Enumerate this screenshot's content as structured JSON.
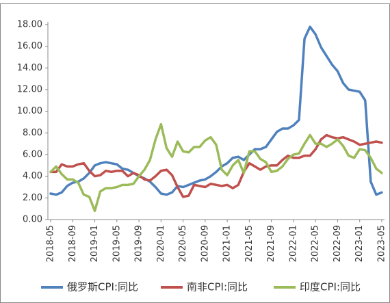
{
  "chart_data": {
    "type": "line",
    "categories": [
      "2018-05",
      null,
      null,
      null,
      "2018-09",
      null,
      null,
      null,
      "2019-01",
      null,
      null,
      null,
      "2019-05",
      null,
      null,
      null,
      "2019-09",
      null,
      null,
      null,
      "2020-01",
      null,
      null,
      null,
      "2020-05",
      null,
      null,
      null,
      "2020-09",
      null,
      null,
      null,
      "2021-01",
      null,
      null,
      null,
      "2021-05",
      null,
      null,
      null,
      "2021-09",
      null,
      null,
      null,
      "2022-01",
      null,
      null,
      null,
      "2022-05",
      null,
      null,
      null,
      "2022-09",
      null,
      null,
      null,
      "2023-01",
      null,
      null,
      null,
      "2023-05"
    ],
    "series": [
      {
        "name": "俄罗斯CPI:同比",
        "color": "#4f81bd",
        "values": [
          2.4,
          2.3,
          2.5,
          3.1,
          3.4,
          3.5,
          3.8,
          4.3,
          5.0,
          5.2,
          5.3,
          5.2,
          5.1,
          4.7,
          4.6,
          4.3,
          4.0,
          3.8,
          3.5,
          3.0,
          2.4,
          2.3,
          2.5,
          3.1,
          3.0,
          3.2,
          3.4,
          3.6,
          3.7,
          4.0,
          4.4,
          4.9,
          5.2,
          5.7,
          5.8,
          5.5,
          6.0,
          6.5,
          6.5,
          6.7,
          7.4,
          8.1,
          8.4,
          8.4,
          8.7,
          9.2,
          16.7,
          17.8,
          17.1,
          15.9,
          15.1,
          14.3,
          13.7,
          12.6,
          12.0,
          11.9,
          11.8,
          11.0,
          3.5,
          2.3,
          2.5
        ]
      },
      {
        "name": "南非CPI:同比",
        "color": "#c0504d",
        "values": [
          4.4,
          4.4,
          5.1,
          4.9,
          4.9,
          5.1,
          5.2,
          4.5,
          4.0,
          4.1,
          4.5,
          4.4,
          4.5,
          4.5,
          4.0,
          4.3,
          4.1,
          3.7,
          3.6,
          4.0,
          4.5,
          4.6,
          4.1,
          3.0,
          2.1,
          2.2,
          3.2,
          3.1,
          3.0,
          3.3,
          3.2,
          3.1,
          3.2,
          2.9,
          3.2,
          4.4,
          5.2,
          4.9,
          4.6,
          4.9,
          5.0,
          5.0,
          5.5,
          5.9,
          5.7,
          5.7,
          5.9,
          5.9,
          6.5,
          7.4,
          7.8,
          7.6,
          7.5,
          7.6,
          7.4,
          7.2,
          6.9,
          7.0,
          7.1,
          7.2,
          7.1
        ]
      },
      {
        "name": "印度CPI:同比",
        "color": "#9bbb59",
        "values": [
          4.4,
          4.9,
          4.2,
          3.7,
          3.7,
          3.4,
          2.3,
          2.1,
          0.8,
          2.6,
          2.9,
          2.9,
          3.0,
          3.2,
          3.2,
          3.3,
          4.0,
          4.6,
          5.5,
          7.4,
          8.8,
          6.6,
          5.8,
          7.2,
          6.3,
          6.2,
          6.7,
          6.7,
          7.3,
          7.6,
          6.9,
          4.6,
          4.1,
          5.0,
          5.5,
          4.3,
          6.3,
          6.3,
          5.6,
          5.3,
          4.4,
          4.5,
          4.9,
          5.6,
          6.0,
          6.1,
          7.0,
          7.8,
          7.0,
          7.0,
          6.7,
          7.0,
          7.4,
          6.8,
          5.9,
          5.7,
          6.5,
          6.4,
          5.7,
          4.7,
          4.3
        ]
      }
    ],
    "ylim": [
      0,
      18
    ],
    "yticks": [
      {
        "value": 0,
        "label": "0.00"
      },
      {
        "value": 2,
        "label": "2.00"
      },
      {
        "value": 4,
        "label": "4.00"
      },
      {
        "value": 6,
        "label": "6.00"
      },
      {
        "value": 8,
        "label": "8.00"
      },
      {
        "value": 10,
        "label": "10.00"
      },
      {
        "value": 12,
        "label": "12.00"
      },
      {
        "value": 14,
        "label": "14.00"
      },
      {
        "value": 16,
        "label": "16.00"
      },
      {
        "value": 18,
        "label": "18.00"
      }
    ],
    "grid": false,
    "legend": "bottom"
  }
}
